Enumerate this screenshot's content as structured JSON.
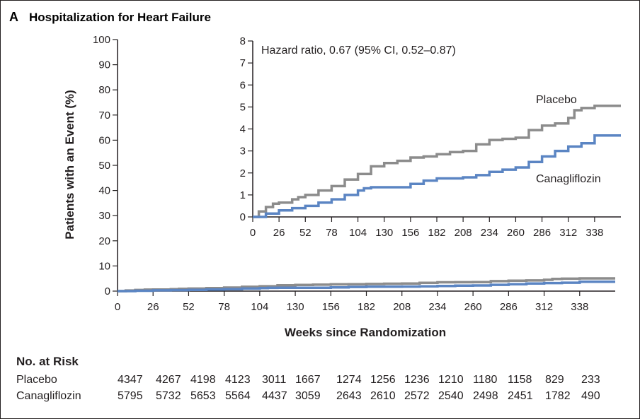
{
  "panel": {
    "letter": "A",
    "title": "Hospitalization for Heart Failure"
  },
  "chart_data": {
    "type": "line",
    "xlabel": "Weeks since Randomization",
    "ylabel": "Patients with an Event (%)",
    "xlim": [
      0,
      364
    ],
    "ylim": [
      0,
      100
    ],
    "xticks": [
      0,
      26,
      52,
      78,
      104,
      130,
      156,
      182,
      208,
      234,
      260,
      286,
      312,
      338
    ],
    "yticks": [
      0,
      10,
      20,
      30,
      40,
      50,
      60,
      70,
      80,
      90,
      100
    ],
    "inset": {
      "xlim": [
        0,
        364
      ],
      "ylim": [
        0,
        8
      ],
      "xticks": [
        0,
        26,
        52,
        78,
        104,
        130,
        156,
        182,
        208,
        234,
        260,
        286,
        312,
        338
      ],
      "yticks": [
        0,
        1,
        2,
        3,
        4,
        5,
        6,
        7,
        8
      ],
      "annotation": "Hazard ratio, 0.67 (95% CI, 0.52–0.87)"
    },
    "series": [
      {
        "name": "Placebo",
        "color": "#8c8c8c",
        "x": [
          0,
          6,
          13,
          20,
          26,
          39,
          45,
          52,
          65,
          78,
          91,
          104,
          117,
          130,
          143,
          156,
          169,
          182,
          195,
          208,
          221,
          234,
          247,
          260,
          273,
          286,
          299,
          312,
          318,
          325,
          338,
          364
        ],
        "y": [
          0,
          0.25,
          0.45,
          0.6,
          0.65,
          0.8,
          0.9,
          1.0,
          1.2,
          1.4,
          1.7,
          1.95,
          2.3,
          2.45,
          2.55,
          2.7,
          2.75,
          2.85,
          2.95,
          3.0,
          3.3,
          3.5,
          3.55,
          3.6,
          3.95,
          4.15,
          4.25,
          4.5,
          4.85,
          4.95,
          5.05,
          5.05
        ]
      },
      {
        "name": "Canagliflozin",
        "color": "#5b85c3",
        "x": [
          0,
          13,
          26,
          39,
          52,
          65,
          78,
          91,
          104,
          110,
          117,
          130,
          156,
          169,
          182,
          208,
          221,
          234,
          247,
          260,
          273,
          286,
          299,
          312,
          325,
          338,
          364
        ],
        "y": [
          0,
          0.15,
          0.3,
          0.4,
          0.5,
          0.65,
          0.8,
          1.0,
          1.2,
          1.3,
          1.35,
          1.35,
          1.5,
          1.65,
          1.75,
          1.8,
          1.9,
          2.05,
          2.15,
          2.25,
          2.5,
          2.75,
          3.0,
          3.2,
          3.35,
          3.7,
          3.7
        ]
      }
    ]
  },
  "risk_table": {
    "header": "No. at Risk",
    "rows": [
      {
        "label": "Placebo",
        "values": [
          "4347",
          "4267",
          "4198",
          "4123",
          "3011",
          "1667",
          "1274",
          "1256",
          "1236",
          "1210",
          "1180",
          "1158",
          "829",
          "233"
        ]
      },
      {
        "label": "Canagliflozin",
        "values": [
          "5795",
          "5732",
          "5653",
          "5564",
          "4437",
          "3059",
          "2643",
          "2610",
          "2572",
          "2540",
          "2498",
          "2451",
          "1782",
          "490"
        ]
      }
    ]
  }
}
